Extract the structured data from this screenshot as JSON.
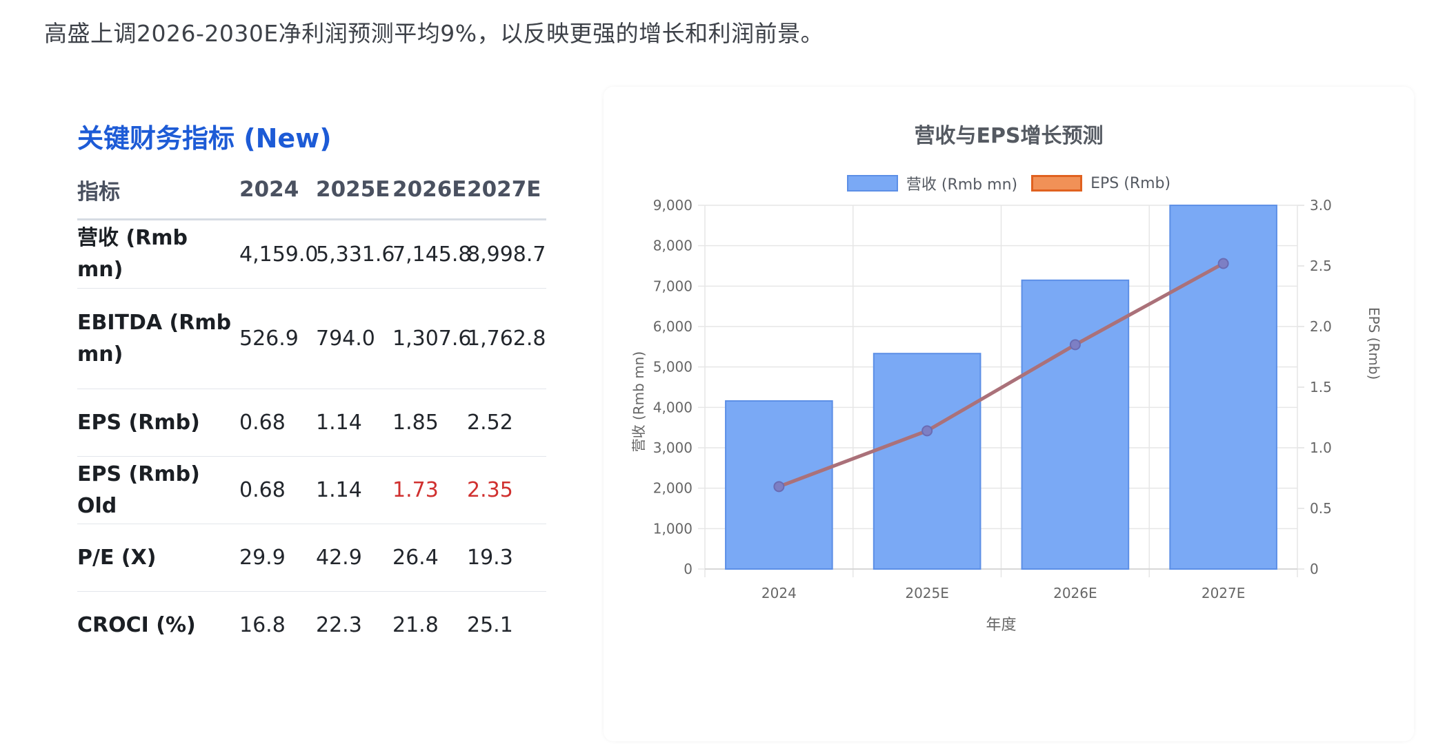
{
  "intro_text": "高盛上调2026-2030E净利润预测平均9%，以反映更强的增长和利润前景。",
  "table": {
    "title": "关键财务指标 (New)",
    "headers": [
      "指标",
      "2024",
      "2025E",
      "2026E",
      "2027E"
    ],
    "rows": [
      {
        "label": "营收 (Rmb mn)",
        "values": [
          "4,159.0",
          "5,331.6",
          "7,145.8",
          "8,998.7"
        ]
      },
      {
        "label": "EBITDA (Rmb mn)",
        "values": [
          "526.9",
          "794.0",
          "1,307.6",
          "1,762.8"
        ]
      },
      {
        "label": "EPS (Rmb)",
        "values": [
          "0.68",
          "1.14",
          "1.85",
          "2.52"
        ]
      },
      {
        "label": "EPS (Rmb) Old",
        "values": [
          "0.68",
          "1.14",
          "1.73",
          "2.35"
        ]
      },
      {
        "label": "P/E (X)",
        "values": [
          "29.9",
          "42.9",
          "26.4",
          "19.3"
        ]
      },
      {
        "label": "CROCI (%)",
        "values": [
          "16.8",
          "22.3",
          "21.8",
          "25.1"
        ]
      }
    ],
    "highlight_color": "#d0302f"
  },
  "chart_data": {
    "type": "bar",
    "title": "营收与EPS增长预测",
    "categories": [
      "2024",
      "2025E",
      "2026E",
      "2027E"
    ],
    "xlabel": "年度",
    "ylabel": "营收 (Rmb mn)",
    "y2label": "EPS (Rmb)",
    "ylim": [
      0,
      9000
    ],
    "y2lim": [
      0,
      3.0
    ],
    "y_ticks": [
      "0",
      "1,000",
      "2,000",
      "3,000",
      "4,000",
      "5,000",
      "6,000",
      "7,000",
      "8,000",
      "9,000"
    ],
    "y2_ticks": [
      "0",
      "0.5",
      "1.0",
      "1.5",
      "2.0",
      "2.5",
      "3.0"
    ],
    "grid": true,
    "legend_position": "top",
    "series": [
      {
        "name": "营收 (Rmb mn)",
        "type": "bar",
        "axis": "left",
        "values": [
          4159.0,
          5331.6,
          7145.8,
          8998.7
        ],
        "color": "#7aa9f5",
        "border": "#5c8fe6"
      },
      {
        "name": "EPS (Rmb)",
        "type": "line",
        "axis": "right",
        "values": [
          0.68,
          1.14,
          1.85,
          2.52
        ],
        "color": "#e0611f",
        "point_color": "#7d7fc4"
      }
    ]
  }
}
